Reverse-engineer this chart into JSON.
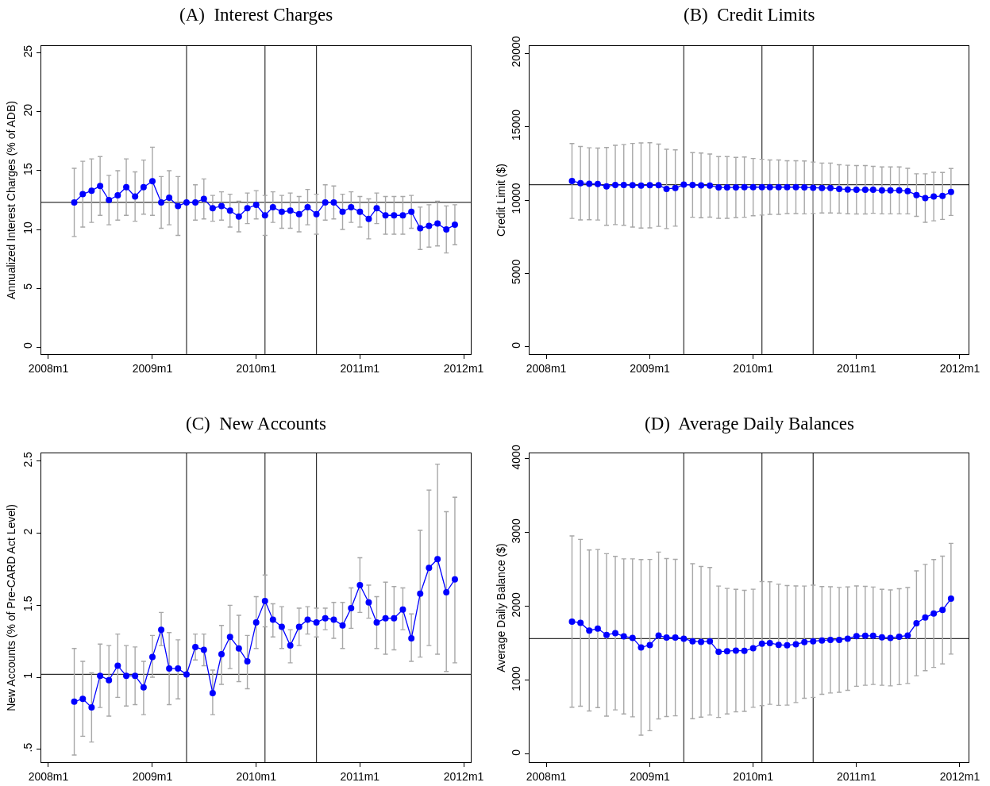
{
  "chart_data": [
    {
      "type": "line",
      "title": "(A)  Interest Charges",
      "ylabel": "Annualized Interest Charges (% of ADB)",
      "marker": "circle",
      "line_style": "solid",
      "grid": false,
      "x": [
        "2008-04",
        "2008-05",
        "2008-06",
        "2008-07",
        "2008-08",
        "2008-09",
        "2008-10",
        "2008-11",
        "2008-12",
        "2009-01",
        "2009-02",
        "2009-03",
        "2009-04",
        "2009-05",
        "2009-06",
        "2009-07",
        "2009-08",
        "2009-09",
        "2009-10",
        "2009-11",
        "2009-12",
        "2010-01",
        "2010-02",
        "2010-03",
        "2010-04",
        "2010-05",
        "2010-06",
        "2010-07",
        "2010-08",
        "2010-09",
        "2010-10",
        "2010-11",
        "2010-12",
        "2011-01",
        "2011-02",
        "2011-03",
        "2011-04",
        "2011-05",
        "2011-06",
        "2011-07",
        "2011-08",
        "2011-09",
        "2011-10",
        "2011-11",
        "2011-12"
      ],
      "series": [
        {
          "color": "#0000ff",
          "values": [
            12.3,
            13.0,
            13.3,
            13.7,
            12.5,
            12.9,
            13.6,
            12.8,
            13.6,
            14.1,
            12.3,
            12.7,
            12.0,
            12.3,
            12.3,
            12.6,
            11.8,
            12.0,
            11.6,
            11.1,
            11.8,
            12.1,
            11.2,
            11.9,
            11.5,
            11.6,
            11.3,
            11.9,
            11.3,
            12.3,
            12.3,
            11.5,
            11.9,
            11.5,
            10.9,
            11.8,
            11.2,
            11.2,
            11.2,
            11.5,
            10.1,
            10.3,
            10.5,
            10.0,
            10.4
          ],
          "errors": [
            2.9,
            2.8,
            2.7,
            2.5,
            2.1,
            2.1,
            2.4,
            2.1,
            2.3,
            2.9,
            2.2,
            2.3,
            2.5,
            null,
            1.5,
            1.7,
            1.1,
            1.2,
            1.4,
            1.3,
            1.3,
            1.2,
            1.7,
            1.3,
            1.4,
            1.5,
            1.5,
            1.5,
            1.7,
            1.5,
            1.4,
            1.5,
            1.3,
            1.3,
            1.7,
            1.3,
            1.6,
            1.6,
            1.6,
            1.4,
            1.8,
            1.8,
            1.9,
            2.0,
            1.7
          ]
        }
      ],
      "xlim": [
        "2007-12-07",
        "2012-01-26"
      ],
      "xticks": [
        {
          "value": "2008-01",
          "label": "2008m1"
        },
        {
          "value": "2009-01",
          "label": "2009m1"
        },
        {
          "value": "2010-01",
          "label": "2010m1"
        },
        {
          "value": "2011-01",
          "label": "2011m1"
        },
        {
          "value": "2012-01",
          "label": "2012m1"
        }
      ],
      "ylim": [
        -0.6,
        25.6
      ],
      "yticks": [
        0,
        5,
        10,
        15,
        20,
        25
      ],
      "ref_lines": [
        {
          "axis": "x",
          "value": "2009-05"
        },
        {
          "axis": "x",
          "value": "2010-02"
        },
        {
          "axis": "x",
          "value": "2010-08"
        },
        {
          "axis": "y",
          "value": 12.3
        }
      ]
    },
    {
      "type": "line",
      "title": "(B)  Credit Limits",
      "ylabel": "Credit Limit ($)",
      "marker": "circle",
      "line_style": "solid",
      "grid": false,
      "x": [
        "2008-04",
        "2008-05",
        "2008-06",
        "2008-07",
        "2008-08",
        "2008-09",
        "2008-10",
        "2008-11",
        "2008-12",
        "2009-01",
        "2009-02",
        "2009-03",
        "2009-04",
        "2009-05",
        "2009-06",
        "2009-07",
        "2009-08",
        "2009-09",
        "2009-10",
        "2009-11",
        "2009-12",
        "2010-01",
        "2010-02",
        "2010-03",
        "2010-04",
        "2010-05",
        "2010-06",
        "2010-07",
        "2010-08",
        "2010-09",
        "2010-10",
        "2010-11",
        "2010-12",
        "2011-01",
        "2011-02",
        "2011-03",
        "2011-04",
        "2011-05",
        "2011-06",
        "2011-07",
        "2011-08",
        "2011-09",
        "2011-10",
        "2011-11",
        "2011-12"
      ],
      "series": [
        {
          "color": "#0000ff",
          "values": [
            11300,
            11150,
            11110,
            11090,
            10930,
            11030,
            11030,
            11010,
            10990,
            11010,
            11010,
            10760,
            10820,
            11050,
            11030,
            11000,
            10990,
            10860,
            10860,
            10860,
            10880,
            10880,
            10880,
            10880,
            10880,
            10880,
            10880,
            10860,
            10840,
            10820,
            10820,
            10760,
            10720,
            10700,
            10700,
            10700,
            10660,
            10660,
            10660,
            10610,
            10340,
            10140,
            10240,
            10280,
            10550
          ],
          "errors": [
            2550,
            2500,
            2450,
            2450,
            2650,
            2700,
            2750,
            2850,
            2900,
            2900,
            2800,
            2700,
            2600,
            null,
            2200,
            2200,
            2150,
            2100,
            2100,
            2050,
            2050,
            1950,
            1900,
            1850,
            1850,
            1800,
            1800,
            1800,
            1750,
            1700,
            1700,
            1650,
            1650,
            1650,
            1650,
            1600,
            1600,
            1600,
            1600,
            1550,
            1450,
            1650,
            1650,
            1600,
            1600
          ]
        }
      ],
      "xlim": [
        "2007-11-03",
        "2012-02-01"
      ],
      "xticks": [
        {
          "value": "2008-01",
          "label": "2008m1"
        },
        {
          "value": "2009-01",
          "label": "2009m1"
        },
        {
          "value": "2010-01",
          "label": "2010m1"
        },
        {
          "value": "2011-01",
          "label": "2011m1"
        },
        {
          "value": "2012-01",
          "label": "2012m1"
        }
      ],
      "ylim": [
        -490,
        20490
      ],
      "yticks": [
        0,
        5000,
        10000,
        15000,
        20000
      ],
      "ref_lines": [
        {
          "axis": "x",
          "value": "2009-05"
        },
        {
          "axis": "x",
          "value": "2010-02"
        },
        {
          "axis": "x",
          "value": "2010-08"
        },
        {
          "axis": "y",
          "value": 11050
        }
      ]
    },
    {
      "type": "line",
      "title": "(C)  New Accounts",
      "ylabel": "New Accounts (% of Pre-CARD Act Level)",
      "marker": "circle",
      "line_style": "solid",
      "grid": false,
      "x": [
        "2008-04",
        "2008-05",
        "2008-06",
        "2008-07",
        "2008-08",
        "2008-09",
        "2008-10",
        "2008-11",
        "2008-12",
        "2009-01",
        "2009-02",
        "2009-03",
        "2009-04",
        "2009-05",
        "2009-06",
        "2009-07",
        "2009-08",
        "2009-09",
        "2009-10",
        "2009-11",
        "2009-12",
        "2010-01",
        "2010-02",
        "2010-03",
        "2010-04",
        "2010-05",
        "2010-06",
        "2010-07",
        "2010-08",
        "2010-09",
        "2010-10",
        "2010-11",
        "2010-12",
        "2011-01",
        "2011-02",
        "2011-03",
        "2011-04",
        "2011-05",
        "2011-06",
        "2011-07",
        "2011-08",
        "2011-09",
        "2011-10",
        "2011-11",
        "2011-12"
      ],
      "series": [
        {
          "color": "#0000ff",
          "values": [
            0.83,
            0.85,
            0.79,
            1.01,
            0.98,
            1.08,
            1.01,
            1.01,
            0.93,
            1.14,
            1.33,
            1.06,
            1.06,
            1.02,
            1.21,
            1.19,
            0.89,
            1.16,
            1.28,
            1.2,
            1.11,
            1.38,
            1.53,
            1.4,
            1.35,
            1.22,
            1.35,
            1.4,
            1.38,
            1.41,
            1.4,
            1.36,
            1.48,
            1.64,
            1.52,
            1.38,
            1.41,
            1.41,
            1.47,
            1.27,
            1.58,
            1.76,
            1.82,
            1.59,
            1.68
          ],
          "errors": [
            [
              0.46,
              1.2
            ],
            [
              0.59,
              1.11
            ],
            [
              0.55,
              1.03
            ],
            [
              0.79,
              1.23
            ],
            [
              0.73,
              1.22
            ],
            [
              0.86,
              1.3
            ],
            [
              0.8,
              1.22
            ],
            [
              0.81,
              1.21
            ],
            [
              0.74,
              1.11
            ],
            [
              1.0,
              1.29
            ],
            [
              1.22,
              1.45
            ],
            [
              0.81,
              1.31
            ],
            [
              0.85,
              1.26
            ],
            null,
            [
              1.12,
              1.3
            ],
            [
              1.08,
              1.3
            ],
            [
              0.74,
              1.05
            ],
            [
              0.95,
              1.36
            ],
            [
              1.06,
              1.5
            ],
            [
              0.97,
              1.43
            ],
            [
              0.92,
              1.29
            ],
            [
              1.2,
              1.56
            ],
            [
              1.35,
              1.71
            ],
            [
              1.28,
              1.51
            ],
            [
              1.2,
              1.49
            ],
            [
              1.1,
              1.33
            ],
            [
              1.22,
              1.48
            ],
            [
              1.3,
              1.49
            ],
            [
              1.28,
              1.48
            ],
            [
              1.33,
              1.48
            ],
            [
              1.27,
              1.52
            ],
            [
              1.2,
              1.52
            ],
            [
              1.34,
              1.62
            ],
            [
              1.45,
              1.83
            ],
            [
              1.41,
              1.64
            ],
            [
              1.2,
              1.56
            ],
            [
              1.16,
              1.66
            ],
            [
              1.19,
              1.63
            ],
            [
              1.33,
              1.62
            ],
            [
              1.11,
              1.44
            ],
            [
              1.14,
              2.02
            ],
            [
              1.22,
              2.3
            ],
            [
              1.16,
              2.48
            ],
            [
              1.04,
              2.15
            ],
            [
              1.1,
              2.25
            ]
          ]
        }
      ],
      "xlim": [
        "2007-12-07",
        "2012-01-26"
      ],
      "xticks": [
        {
          "value": "2008-01",
          "label": "2008m1"
        },
        {
          "value": "2009-01",
          "label": "2009m1"
        },
        {
          "value": "2010-01",
          "label": "2010m1"
        },
        {
          "value": "2011-01",
          "label": "2011m1"
        },
        {
          "value": "2012-01",
          "label": "2012m1"
        }
      ],
      "ylim": [
        0.41,
        2.555
      ],
      "yticks": [
        {
          "value": 0.5,
          "label": ".5"
        },
        1,
        1.5,
        2,
        2.5
      ],
      "ref_lines": [
        {
          "axis": "x",
          "value": "2009-05"
        },
        {
          "axis": "x",
          "value": "2010-02"
        },
        {
          "axis": "x",
          "value": "2010-08"
        },
        {
          "axis": "y",
          "value": 1.02
        }
      ]
    },
    {
      "type": "line",
      "title": "(D)  Average Daily Balances",
      "ylabel": "Average Daily Balance ($)",
      "marker": "circle",
      "line_style": "solid",
      "grid": false,
      "x": [
        "2008-04",
        "2008-05",
        "2008-06",
        "2008-07",
        "2008-08",
        "2008-09",
        "2008-10",
        "2008-11",
        "2008-12",
        "2009-01",
        "2009-02",
        "2009-03",
        "2009-04",
        "2009-05",
        "2009-06",
        "2009-07",
        "2009-08",
        "2009-09",
        "2009-10",
        "2009-11",
        "2009-12",
        "2010-01",
        "2010-02",
        "2010-03",
        "2010-04",
        "2010-05",
        "2010-06",
        "2010-07",
        "2010-08",
        "2010-09",
        "2010-10",
        "2010-11",
        "2010-12",
        "2011-01",
        "2011-02",
        "2011-03",
        "2011-04",
        "2011-05",
        "2011-06",
        "2011-07",
        "2011-08",
        "2011-09",
        "2011-10",
        "2011-11",
        "2011-12"
      ],
      "series": [
        {
          "color": "#0000ff",
          "values": [
            1796,
            1780,
            1675,
            1702,
            1616,
            1640,
            1596,
            1576,
            1447,
            1478,
            1608,
            1580,
            1580,
            1565,
            1530,
            1522,
            1530,
            1388,
            1396,
            1404,
            1400,
            1435,
            1498,
            1506,
            1482,
            1475,
            1490,
            1518,
            1530,
            1541,
            1549,
            1549,
            1565,
            1600,
            1604,
            1604,
            1584,
            1576,
            1592,
            1608,
            1773,
            1851,
            1906,
            1953,
            2106
          ],
          "errors": [
            1160,
            1130,
            1090,
            1070,
            1100,
            1040,
            1050,
            1070,
            1190,
            1160,
            1130,
            1070,
            1060,
            null,
            1050,
            1020,
            1000,
            890,
            850,
            830,
            820,
            800,
            840,
            830,
            820,
            810,
            790,
            760,
            760,
            730,
            720,
            710,
            700,
            680,
            670,
            660,
            650,
            650,
            650,
            650,
            710,
            720,
            730,
            730,
            750
          ]
        }
      ],
      "xlim": [
        "2007-11-03",
        "2012-02-01"
      ],
      "xticks": [
        {
          "value": "2008-01",
          "label": "2008m1"
        },
        {
          "value": "2009-01",
          "label": "2009m1"
        },
        {
          "value": "2010-01",
          "label": "2010m1"
        },
        {
          "value": "2011-01",
          "label": "2011m1"
        },
        {
          "value": "2012-01",
          "label": "2012m1"
        }
      ],
      "ylim": [
        -108,
        4075
      ],
      "yticks": [
        0,
        1000,
        2000,
        3000,
        4000
      ],
      "ref_lines": [
        {
          "axis": "x",
          "value": "2009-05"
        },
        {
          "axis": "x",
          "value": "2010-02"
        },
        {
          "axis": "x",
          "value": "2010-08"
        },
        {
          "axis": "y",
          "value": 1565
        }
      ]
    }
  ]
}
